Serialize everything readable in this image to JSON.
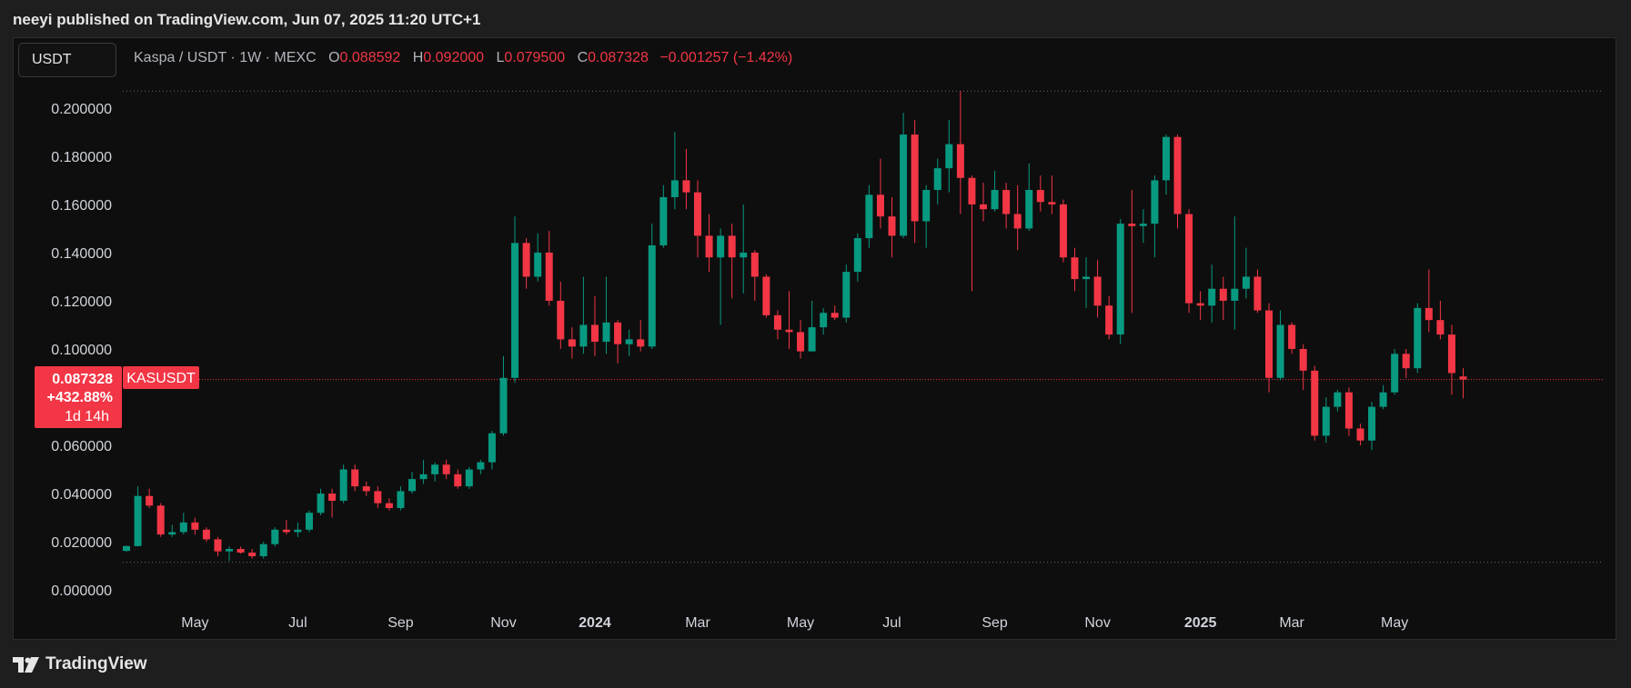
{
  "caption": "neeyi published on TradingView.com, Jun 07, 2025 11:20 UTC+1",
  "symbol_box": "USDT",
  "legend": {
    "title": "Kaspa / USDT · 1W · MEXC",
    "o_label": "O",
    "o_value": "0.088592",
    "h_label": "H",
    "h_value": "0.092000",
    "l_label": "L",
    "l_value": "0.079500",
    "c_label": "C",
    "c_value": "0.087328",
    "change": "−0.001257 (−1.42%)"
  },
  "price_tag": {
    "price": "0.087328",
    "pct": "+432.88%",
    "countdown": "1d 14h",
    "symbol": "KASUSDT"
  },
  "footer": {
    "brand": "TradingView"
  },
  "colors": {
    "up": "#089981",
    "down": "#f23645",
    "background": "#0e0e0e"
  },
  "chart_data": {
    "type": "candlestick",
    "y_ticks": [
      "0.200000",
      "0.180000",
      "0.160000",
      "0.140000",
      "0.120000",
      "0.100000",
      "0.060000",
      "0.040000",
      "0.020000",
      "0.000000"
    ],
    "y_tick_values": [
      0.2,
      0.18,
      0.16,
      0.14,
      0.12,
      0.1,
      0.06,
      0.04,
      0.02,
      0.0
    ],
    "ylim": [
      -0.006,
      0.209
    ],
    "x_ticks": [
      {
        "label": "May",
        "index": 6,
        "bold": false
      },
      {
        "label": "Jul",
        "index": 15,
        "bold": false
      },
      {
        "label": "Sep",
        "index": 24,
        "bold": false
      },
      {
        "label": "Nov",
        "index": 33,
        "bold": false
      },
      {
        "label": "2024",
        "index": 41,
        "bold": true
      },
      {
        "label": "Mar",
        "index": 50,
        "bold": false
      },
      {
        "label": "May",
        "index": 59,
        "bold": false
      },
      {
        "label": "Jul",
        "index": 67,
        "bold": false
      },
      {
        "label": "Sep",
        "index": 76,
        "bold": false
      },
      {
        "label": "Nov",
        "index": 85,
        "bold": false
      },
      {
        "label": "2025",
        "index": 94,
        "bold": true
      },
      {
        "label": "Mar",
        "index": 102,
        "bold": false
      },
      {
        "label": "May",
        "index": 111,
        "bold": false
      }
    ],
    "high_line": 0.207,
    "low_line": 0.0115,
    "last_price": 0.087328,
    "candles": [
      [
        0.0162,
        0.0182,
        0.0158,
        0.0184
      ],
      [
        0.0182,
        0.039,
        0.018,
        0.043
      ],
      [
        0.039,
        0.035,
        0.034,
        0.042
      ],
      [
        0.035,
        0.023,
        0.022,
        0.036
      ],
      [
        0.023,
        0.024,
        0.022,
        0.027
      ],
      [
        0.024,
        0.028,
        0.023,
        0.032
      ],
      [
        0.028,
        0.025,
        0.023,
        0.03
      ],
      [
        0.025,
        0.021,
        0.02,
        0.026
      ],
      [
        0.021,
        0.016,
        0.014,
        0.022
      ],
      [
        0.016,
        0.017,
        0.012,
        0.018
      ],
      [
        0.017,
        0.0155,
        0.015,
        0.018
      ],
      [
        0.0155,
        0.014,
        0.013,
        0.017
      ],
      [
        0.014,
        0.019,
        0.013,
        0.02
      ],
      [
        0.019,
        0.025,
        0.018,
        0.026
      ],
      [
        0.025,
        0.024,
        0.023,
        0.029
      ],
      [
        0.024,
        0.025,
        0.022,
        0.028
      ],
      [
        0.025,
        0.032,
        0.024,
        0.033
      ],
      [
        0.032,
        0.04,
        0.031,
        0.042
      ],
      [
        0.04,
        0.037,
        0.03,
        0.042
      ],
      [
        0.037,
        0.05,
        0.036,
        0.052
      ],
      [
        0.05,
        0.043,
        0.041,
        0.052
      ],
      [
        0.043,
        0.041,
        0.039,
        0.045
      ],
      [
        0.041,
        0.036,
        0.034,
        0.043
      ],
      [
        0.036,
        0.034,
        0.033,
        0.038
      ],
      [
        0.034,
        0.041,
        0.033,
        0.043
      ],
      [
        0.041,
        0.046,
        0.04,
        0.049
      ],
      [
        0.046,
        0.048,
        0.044,
        0.054
      ],
      [
        0.048,
        0.052,
        0.045,
        0.053
      ],
      [
        0.052,
        0.048,
        0.046,
        0.054
      ],
      [
        0.048,
        0.043,
        0.042,
        0.05
      ],
      [
        0.043,
        0.05,
        0.042,
        0.051
      ],
      [
        0.05,
        0.053,
        0.048,
        0.054
      ],
      [
        0.053,
        0.065,
        0.05,
        0.066
      ],
      [
        0.065,
        0.088,
        0.064,
        0.097
      ],
      [
        0.088,
        0.144,
        0.086,
        0.155
      ],
      [
        0.144,
        0.13,
        0.125,
        0.146
      ],
      [
        0.13,
        0.14,
        0.128,
        0.148
      ],
      [
        0.14,
        0.12,
        0.118,
        0.149
      ],
      [
        0.12,
        0.104,
        0.1,
        0.128
      ],
      [
        0.104,
        0.101,
        0.096,
        0.109
      ],
      [
        0.101,
        0.11,
        0.098,
        0.13
      ],
      [
        0.11,
        0.103,
        0.097,
        0.122
      ],
      [
        0.103,
        0.111,
        0.098,
        0.13
      ],
      [
        0.111,
        0.102,
        0.094,
        0.112
      ],
      [
        0.102,
        0.104,
        0.097,
        0.108
      ],
      [
        0.104,
        0.101,
        0.099,
        0.112
      ],
      [
        0.101,
        0.143,
        0.1,
        0.152
      ],
      [
        0.143,
        0.163,
        0.142,
        0.168
      ],
      [
        0.163,
        0.17,
        0.158,
        0.19
      ],
      [
        0.17,
        0.165,
        0.158,
        0.183
      ],
      [
        0.165,
        0.147,
        0.138,
        0.17
      ],
      [
        0.147,
        0.138,
        0.132,
        0.156
      ],
      [
        0.138,
        0.147,
        0.11,
        0.15
      ],
      [
        0.147,
        0.138,
        0.121,
        0.152
      ],
      [
        0.138,
        0.14,
        0.123,
        0.16
      ],
      [
        0.14,
        0.13,
        0.12,
        0.141
      ],
      [
        0.13,
        0.114,
        0.113,
        0.131
      ],
      [
        0.114,
        0.108,
        0.104,
        0.116
      ],
      [
        0.108,
        0.107,
        0.1,
        0.124
      ],
      [
        0.107,
        0.099,
        0.096,
        0.112
      ],
      [
        0.099,
        0.109,
        0.099,
        0.12
      ],
      [
        0.109,
        0.115,
        0.106,
        0.117
      ],
      [
        0.115,
        0.113,
        0.112,
        0.118
      ],
      [
        0.113,
        0.132,
        0.111,
        0.135
      ],
      [
        0.132,
        0.146,
        0.128,
        0.148
      ],
      [
        0.146,
        0.164,
        0.142,
        0.168
      ],
      [
        0.164,
        0.155,
        0.15,
        0.179
      ],
      [
        0.155,
        0.147,
        0.138,
        0.163
      ],
      [
        0.147,
        0.189,
        0.146,
        0.198
      ],
      [
        0.189,
        0.153,
        0.144,
        0.195
      ],
      [
        0.153,
        0.166,
        0.142,
        0.168
      ],
      [
        0.166,
        0.175,
        0.16,
        0.179
      ],
      [
        0.175,
        0.185,
        0.165,
        0.195
      ],
      [
        0.185,
        0.171,
        0.156,
        0.207
      ],
      [
        0.171,
        0.16,
        0.124,
        0.172
      ],
      [
        0.16,
        0.158,
        0.153,
        0.169
      ],
      [
        0.158,
        0.166,
        0.157,
        0.174
      ],
      [
        0.166,
        0.156,
        0.15,
        0.169
      ],
      [
        0.156,
        0.15,
        0.141,
        0.168
      ],
      [
        0.15,
        0.166,
        0.149,
        0.177
      ],
      [
        0.166,
        0.161,
        0.157,
        0.172
      ],
      [
        0.161,
        0.16,
        0.156,
        0.172
      ],
      [
        0.16,
        0.138,
        0.136,
        0.162
      ],
      [
        0.138,
        0.129,
        0.124,
        0.142
      ],
      [
        0.129,
        0.13,
        0.117,
        0.138
      ],
      [
        0.13,
        0.118,
        0.113,
        0.137
      ],
      [
        0.118,
        0.106,
        0.104,
        0.122
      ],
      [
        0.106,
        0.152,
        0.102,
        0.154
      ],
      [
        0.152,
        0.151,
        0.115,
        0.166
      ],
      [
        0.151,
        0.152,
        0.144,
        0.158
      ],
      [
        0.152,
        0.17,
        0.138,
        0.172
      ],
      [
        0.17,
        0.188,
        0.164,
        0.189
      ],
      [
        0.188,
        0.156,
        0.15,
        0.189
      ],
      [
        0.156,
        0.119,
        0.115,
        0.158
      ],
      [
        0.119,
        0.118,
        0.112,
        0.124
      ],
      [
        0.118,
        0.125,
        0.111,
        0.135
      ],
      [
        0.125,
        0.12,
        0.112,
        0.13
      ],
      [
        0.12,
        0.125,
        0.108,
        0.155
      ],
      [
        0.125,
        0.13,
        0.121,
        0.142
      ],
      [
        0.13,
        0.116,
        0.115,
        0.133
      ],
      [
        0.116,
        0.088,
        0.082,
        0.119
      ],
      [
        0.088,
        0.11,
        0.087,
        0.116
      ],
      [
        0.11,
        0.1,
        0.098,
        0.111
      ],
      [
        0.1,
        0.091,
        0.083,
        0.102
      ],
      [
        0.091,
        0.064,
        0.062,
        0.093
      ],
      [
        0.064,
        0.076,
        0.061,
        0.08
      ],
      [
        0.076,
        0.082,
        0.074,
        0.083
      ],
      [
        0.082,
        0.067,
        0.064,
        0.084
      ],
      [
        0.067,
        0.062,
        0.06,
        0.069
      ],
      [
        0.062,
        0.076,
        0.058,
        0.078
      ],
      [
        0.076,
        0.082,
        0.075,
        0.085
      ],
      [
        0.082,
        0.098,
        0.081,
        0.1
      ],
      [
        0.098,
        0.092,
        0.088,
        0.1
      ],
      [
        0.092,
        0.117,
        0.09,
        0.119
      ],
      [
        0.117,
        0.112,
        0.107,
        0.133
      ],
      [
        0.112,
        0.106,
        0.104,
        0.12
      ],
      [
        0.106,
        0.09,
        0.081,
        0.11
      ],
      [
        0.0886,
        0.0873,
        0.0795,
        0.092
      ]
    ]
  }
}
